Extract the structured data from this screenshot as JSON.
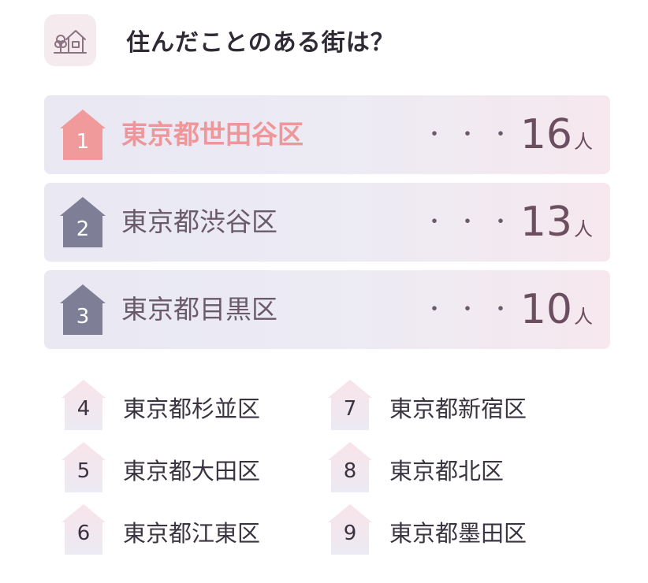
{
  "header": {
    "title": "住んだことのある街は？",
    "icon": "house-tree-icon"
  },
  "top_ranks": [
    {
      "rank": "1",
      "name": "東京都世田谷区",
      "dots": "・・・",
      "count": "16",
      "unit": "人"
    },
    {
      "rank": "2",
      "name": "東京都渋谷区",
      "dots": "・・・",
      "count": "13",
      "unit": "人"
    },
    {
      "rank": "3",
      "name": "東京都目黒区",
      "dots": "・・・",
      "count": "10",
      "unit": "人"
    }
  ],
  "other_ranks": [
    {
      "rank": "4",
      "name": "東京都杉並区"
    },
    {
      "rank": "5",
      "name": "東京都大田区"
    },
    {
      "rank": "6",
      "name": "東京都江東区"
    },
    {
      "rank": "7",
      "name": "東京都新宿区"
    },
    {
      "rank": "8",
      "name": "東京都北区"
    },
    {
      "rank": "9",
      "name": "東京都墨田区"
    }
  ],
  "colors": {
    "first_badge": "#f19a9c",
    "other_top_badge": "#7e7f96",
    "small_badge_top": "#f8e4ea",
    "small_badge_bottom": "#eceaf2",
    "first_name": "#ee969a",
    "count_text": "#6b4e5f"
  }
}
